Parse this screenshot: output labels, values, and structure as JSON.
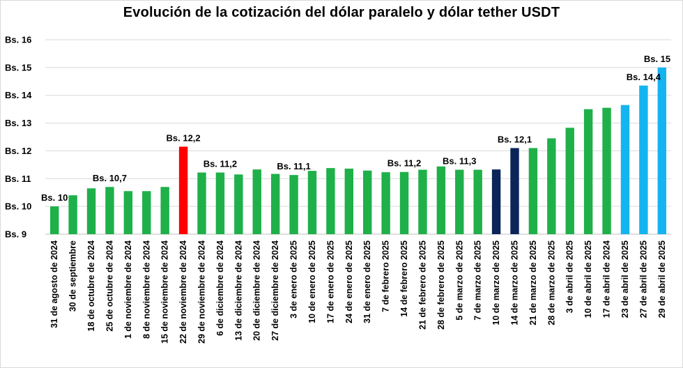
{
  "chart_data": {
    "type": "bar",
    "title": "Evolución de la cotización del dólar paralelo y dólar tether USDT",
    "xlabel": "",
    "ylabel": "",
    "ylim": [
      9,
      16
    ],
    "yticks": [
      9,
      10,
      11,
      12,
      13,
      14,
      15,
      16
    ],
    "ytick_prefix": "Bs. ",
    "grid": true,
    "legend": "none",
    "categories": [
      "31 de agosto de 2024",
      "30 de septiembre",
      "18 de octubre de 2024",
      "25 de octubre de 2024",
      "1 de noviembre de 2024",
      "8 de noviembre de 2024",
      "15 de noviembre de 2024",
      "22 de noviembre de 2024",
      "29 de noviembre de 2024",
      "6 de diciembre de 2024",
      "13 de diciembre de 2024",
      "20 de diciembre de 2024",
      "27 de diciembre de 2024",
      "3 de enero de  2025",
      "10 de enero de 2025",
      "17 de enero de 2025",
      "24 de enero de 2025",
      "31 de enero de 2025",
      "7 de febrero 2025",
      "14 de febrero 2025",
      "21 de febrero de 2025",
      "28 de febrero de 2025",
      "5 de marzo de 2025",
      "7 de marzo de 2025",
      "10 de marzo de 2025",
      "14 de marzo de 2025",
      "21 de marzo de 2025",
      "28 de marzo de 2025",
      "3 de abril de 2025",
      "10 de abril de 2025",
      "17 de abril de 2024",
      "23 de abril de 2025",
      "27 de abril de 2025",
      "29 de abril de 2025"
    ],
    "values": [
      10.0,
      10.4,
      10.65,
      10.7,
      10.55,
      10.55,
      10.7,
      12.15,
      11.22,
      11.22,
      11.15,
      11.33,
      11.17,
      11.13,
      11.28,
      11.38,
      11.36,
      11.29,
      11.23,
      11.24,
      11.32,
      11.44,
      11.32,
      11.32,
      11.33,
      12.1,
      12.1,
      12.45,
      12.83,
      13.5,
      13.55,
      13.65,
      14.35,
      15.0
    ],
    "bar_colors": [
      "#1fb04a",
      "#1fb04a",
      "#1fb04a",
      "#1fb04a",
      "#1fb04a",
      "#1fb04a",
      "#1fb04a",
      "#ff0000",
      "#1fb04a",
      "#1fb04a",
      "#1fb04a",
      "#1fb04a",
      "#1fb04a",
      "#1fb04a",
      "#1fb04a",
      "#1fb04a",
      "#1fb04a",
      "#1fb04a",
      "#1fb04a",
      "#1fb04a",
      "#1fb04a",
      "#1fb04a",
      "#1fb04a",
      "#1fb04a",
      "#0b2559",
      "#0b2559",
      "#1fb04a",
      "#1fb04a",
      "#1fb04a",
      "#1fb04a",
      "#1fb04a",
      "#14b4f0",
      "#14b4f0",
      "#14b4f0"
    ],
    "annotations": [
      {
        "index": 0,
        "text": "Bs. 10"
      },
      {
        "index": 3,
        "text": "Bs. 10,7"
      },
      {
        "index": 7,
        "text": "Bs. 12,2"
      },
      {
        "index": 9,
        "text": "Bs. 11,2"
      },
      {
        "index": 13,
        "text": "Bs. 11,1"
      },
      {
        "index": 19,
        "text": "Bs. 11,2"
      },
      {
        "index": 22,
        "text": "Bs. 11,3"
      },
      {
        "index": 25,
        "text": "Bs. 12,1"
      },
      {
        "index": 32,
        "text": "Bs. 14,4"
      },
      {
        "index": 33,
        "text": "Bs. 15"
      }
    ]
  }
}
